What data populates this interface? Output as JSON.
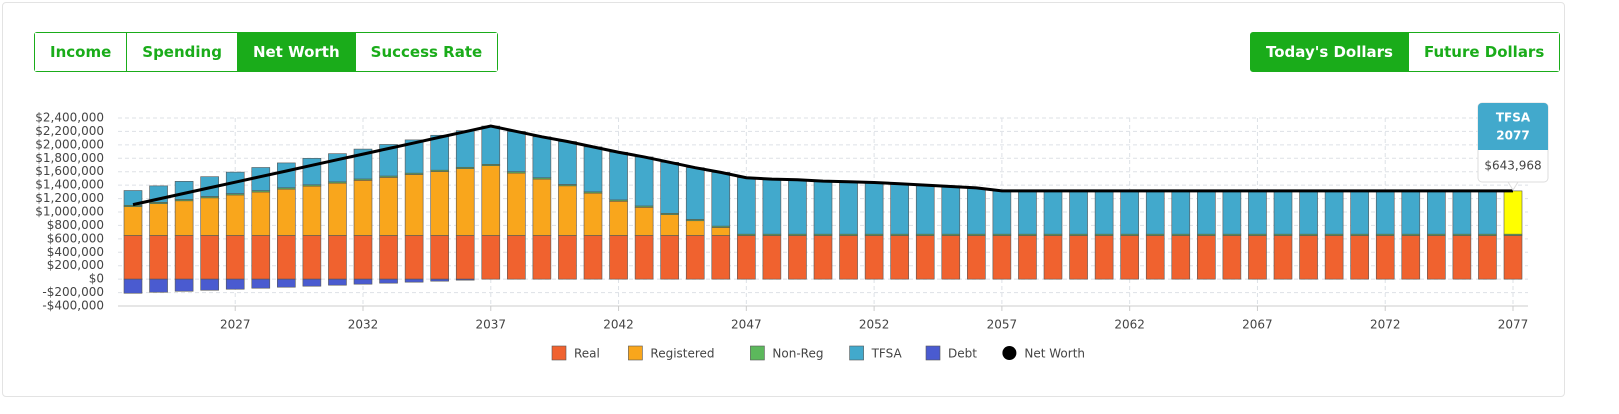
{
  "tabs": {
    "items": [
      "Income",
      "Spending",
      "Net Worth",
      "Success Rate"
    ],
    "active": 2
  },
  "dollar_toggle": {
    "items": [
      "Today's Dollars",
      "Future Dollars"
    ],
    "active": 0
  },
  "chart_data": {
    "type": "stacked_bar_line",
    "categories": [
      null,
      null,
      null,
      null,
      "2027",
      null,
      null,
      null,
      null,
      "2032",
      null,
      null,
      null,
      null,
      "2037",
      null,
      null,
      null,
      null,
      "2042",
      null,
      null,
      null,
      null,
      "2047",
      null,
      null,
      null,
      null,
      "2052",
      null,
      null,
      null,
      null,
      "2057",
      null,
      null,
      null,
      null,
      "2062",
      null,
      null,
      null,
      null,
      "2067",
      null,
      null,
      null,
      null,
      "2072",
      null,
      null,
      null,
      null,
      "2077"
    ],
    "series": [
      {
        "name": "Real",
        "color": "#f0622f",
        "values": [
          650000,
          650000,
          650000,
          650000,
          650000,
          650000,
          650000,
          650000,
          650000,
          650000,
          650000,
          650000,
          650000,
          650000,
          650000,
          650000,
          650000,
          650000,
          650000,
          650000,
          650000,
          650000,
          650000,
          650000,
          650000,
          650000,
          650000,
          650000,
          650000,
          650000,
          650000,
          650000,
          650000,
          650000,
          650000,
          650000,
          650000,
          650000,
          650000,
          650000,
          650000,
          650000,
          650000,
          650000,
          650000,
          650000,
          650000,
          650000,
          650000,
          650000,
          650000,
          650000,
          650000,
          650000,
          650000
        ]
      },
      {
        "name": "Registered",
        "color": "#f9a61c",
        "values": [
          430000,
          474000,
          517000,
          561000,
          604000,
          648000,
          691000,
          735000,
          779000,
          822000,
          866000,
          909000,
          953000,
          996000,
          1040000,
          930000,
          840000,
          740000,
          630000,
          510000,
          420000,
          310000,
          220000,
          120000,
          0,
          0,
          0,
          0,
          0,
          0,
          0,
          0,
          0,
          0,
          0,
          0,
          0,
          0,
          0,
          0,
          0,
          0,
          0,
          0,
          0,
          0,
          0,
          0,
          0,
          0,
          0,
          0,
          0,
          0,
          0
        ]
      },
      {
        "name": "Non-Reg",
        "color": "#5cb85c",
        "values": [
          20000,
          20000,
          20000,
          20000,
          20000,
          20000,
          20000,
          20000,
          20000,
          20000,
          20000,
          20000,
          20000,
          20000,
          20000,
          20000,
          20000,
          20000,
          20000,
          20000,
          20000,
          20000,
          20000,
          20000,
          20000,
          20000,
          20000,
          20000,
          20000,
          20000,
          20000,
          20000,
          20000,
          20000,
          20000,
          20000,
          20000,
          20000,
          20000,
          20000,
          20000,
          20000,
          20000,
          20000,
          20000,
          20000,
          20000,
          20000,
          20000,
          20000,
          20000,
          20000,
          20000,
          20000,
          20000
        ]
      },
      {
        "name": "TFSA",
        "color": "#42a9cc",
        "values": [
          220000,
          245000,
          270000,
          295000,
          320000,
          345000,
          370000,
          395000,
          420000,
          445000,
          470000,
          495000,
          520000,
          545000,
          570000,
          600000,
          610000,
          640000,
          670000,
          710000,
          730000,
          760000,
          770000,
          800000,
          840000,
          820000,
          810000,
          790000,
          780000,
          770000,
          750000,
          730000,
          710000,
          690000,
          643968,
          643968,
          643968,
          643968,
          643968,
          643968,
          643968,
          643968,
          643968,
          643968,
          643968,
          643968,
          643968,
          643968,
          643968,
          643968,
          643968,
          643968,
          643968,
          643968,
          643968
        ]
      },
      {
        "name": "Debt",
        "color": "#4a5bd0",
        "values": [
          -210000,
          -195000,
          -180000,
          -165000,
          -150000,
          -135000,
          -120000,
          -105000,
          -90000,
          -75000,
          -60000,
          -45000,
          -30000,
          -15000,
          0,
          0,
          0,
          0,
          0,
          0,
          0,
          0,
          0,
          0,
          0,
          0,
          0,
          0,
          0,
          0,
          0,
          0,
          0,
          0,
          0,
          0,
          0,
          0,
          0,
          0,
          0,
          0,
          0,
          0,
          0,
          0,
          0,
          0,
          0,
          0,
          0,
          0,
          0,
          0,
          0
        ]
      },
      {
        "name": "Net Worth",
        "color": "#000000",
        "kind": "line",
        "values": [
          1110000,
          1194000,
          1277000,
          1361000,
          1444000,
          1528000,
          1611000,
          1695000,
          1779000,
          1862000,
          1946000,
          2029000,
          2113000,
          2196000,
          2280000,
          2200000,
          2120000,
          2050000,
          1970000,
          1890000,
          1820000,
          1740000,
          1660000,
          1590000,
          1510000,
          1490000,
          1480000,
          1460000,
          1450000,
          1440000,
          1420000,
          1400000,
          1380000,
          1360000,
          1313968,
          1313968,
          1313968,
          1313968,
          1313968,
          1313968,
          1313968,
          1313968,
          1313968,
          1313968,
          1313968,
          1313968,
          1313968,
          1313968,
          1313968,
          1313968,
          1313968,
          1313968,
          1313968,
          1313968,
          1313968
        ]
      }
    ],
    "ylim": [
      -400000,
      2400000
    ],
    "yticks": [
      {
        "value": -400000,
        "label": "-$400,000"
      },
      {
        "value": -200000,
        "label": "-$200,000"
      },
      {
        "value": 0,
        "label": "$0"
      },
      {
        "value": 200000,
        "label": "$200,000"
      },
      {
        "value": 400000,
        "label": "$400,000"
      },
      {
        "value": 600000,
        "label": "$600,000"
      },
      {
        "value": 800000,
        "label": "$800,000"
      },
      {
        "value": 1000000,
        "label": "$1,000,000"
      },
      {
        "value": 1200000,
        "label": "$1,200,000"
      },
      {
        "value": 1400000,
        "label": "$1,400,000"
      },
      {
        "value": 1600000,
        "label": "$1,600,000"
      },
      {
        "value": 1800000,
        "label": "$1,800,000"
      },
      {
        "value": 2000000,
        "label": "$2,000,000"
      },
      {
        "value": 2200000,
        "label": "$2,200,000"
      },
      {
        "value": 2400000,
        "label": "$2,400,000"
      }
    ],
    "grid": true,
    "legend": "bottom",
    "tooltip": {
      "series": "TFSA",
      "year": "2077",
      "value_label": "$643,968",
      "index": 54,
      "highlight_color": "#ffff00"
    }
  }
}
